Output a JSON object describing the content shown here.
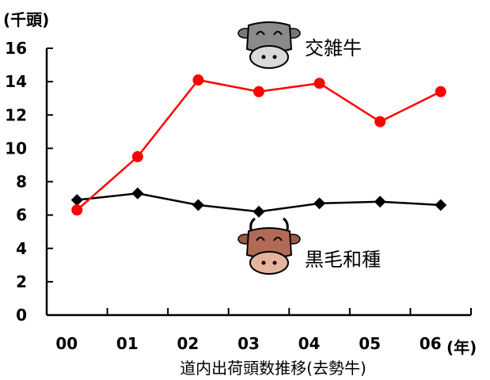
{
  "chart_data": {
    "type": "line",
    "categories": [
      "00",
      "01",
      "02",
      "03",
      "04",
      "05",
      "06"
    ],
    "y_unit": "(千頭)",
    "x_unit": "(年)",
    "caption": "道内出荷頭数推移(去勢牛)",
    "ylim": [
      0,
      16
    ],
    "yticks": [
      "0",
      "2",
      "4",
      "6",
      "8",
      "10",
      "12",
      "14",
      "16"
    ],
    "grid": false,
    "series": [
      {
        "name": "交雑牛",
        "color": "#ff0000",
        "marker": "circle",
        "icon": "gray-cow-icon",
        "values": [
          6.3,
          9.5,
          14.1,
          13.4,
          13.9,
          11.6,
          13.4
        ]
      },
      {
        "name": "黒毛和種",
        "color": "#000000",
        "marker": "diamond",
        "icon": "brown-cow-icon",
        "values": [
          6.9,
          7.3,
          6.6,
          6.2,
          6.7,
          6.8,
          6.6
        ]
      }
    ]
  }
}
